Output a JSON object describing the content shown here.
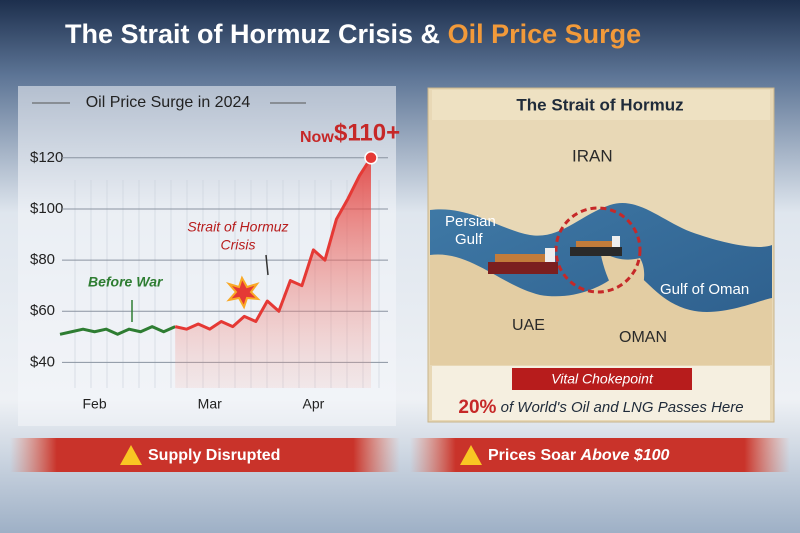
{
  "header": {
    "title_a": "The Strait of Hormuz Crisis &",
    "title_b": "Oil Price Surge"
  },
  "chart_data": {
    "type": "line",
    "title": "Oil Price Surge in 2024",
    "categories": [
      null,
      null,
      null,
      "Feb",
      null,
      null,
      null,
      null,
      null,
      null,
      null,
      null,
      null,
      "Mar",
      null,
      null,
      null,
      null,
      null,
      null,
      null,
      null,
      "Apr",
      null,
      null,
      null,
      null,
      null
    ],
    "series": [
      {
        "color": "#2e7d32",
        "values": [
          51,
          52,
          53,
          52,
          53,
          51,
          53,
          52,
          54,
          52,
          54,
          null,
          null,
          null,
          null,
          null,
          null,
          null,
          null,
          null,
          null,
          null,
          null,
          null,
          null,
          null,
          null,
          null
        ]
      },
      {
        "color": "#e53935",
        "values": [
          null,
          null,
          null,
          null,
          null,
          null,
          null,
          null,
          null,
          null,
          54,
          53,
          55,
          53,
          56,
          54,
          58,
          56,
          64,
          60,
          72,
          70,
          84,
          80,
          96,
          104,
          113,
          120
        ]
      }
    ],
    "ylim": [
      30,
      125
    ],
    "yticks": [
      {
        "value": 40,
        "label": "$40"
      },
      {
        "value": 60,
        "label": "$60"
      },
      {
        "value": 80,
        "label": "$80"
      },
      {
        "value": 100,
        "label": "$100"
      },
      {
        "value": 120,
        "label": "$120"
      }
    ],
    "grid": true,
    "annotations": {
      "before": "Before War",
      "crisis_a": "Strait of Hormuz",
      "crisis_b": "Crisis",
      "now": "Now",
      "now_value": "$110+"
    }
  },
  "map": {
    "title": "The Strait of Hormuz",
    "iran": "IRAN",
    "persian_a": "Persian",
    "persian_b": "Gulf",
    "uae": "UAE",
    "oman": "OMAN",
    "gulf_oman": "Gulf of Oman",
    "ribbon": "Vital Chokepoint",
    "share": "20%",
    "share_text": "of World's Oil and LNG Passes Here"
  },
  "banners": {
    "left": "Supply Disrupted",
    "right_a": "Prices Soar",
    "right_b": "Above $100"
  }
}
